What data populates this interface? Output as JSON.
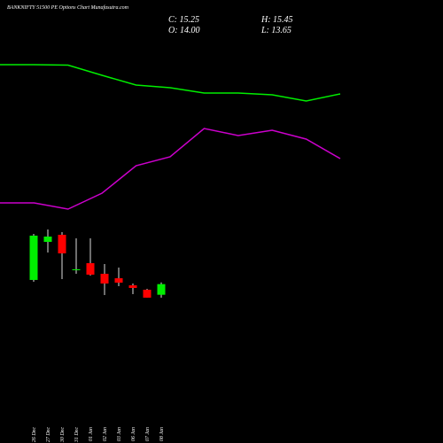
{
  "header": {
    "title": "BANKNIFTY 51500  PE Options  Chart Munafasutra.com",
    "close": "C: 15.25",
    "open": "O: 14.00",
    "high": "H: 15.45",
    "low": "L: 13.65"
  },
  "chart_data": [
    {
      "type": "line",
      "ylim": [
        0,
        100
      ],
      "series": [
        {
          "color": "#00ee00",
          "values": [
            70.8,
            70.8,
            70.6,
            66,
            61.6,
            60.4,
            58,
            58,
            57.2,
            54.4,
            57.6
          ]
        },
        {
          "color": "#cc00cc",
          "values": [
            8.4,
            8.4,
            5.6,
            12.8,
            25.2,
            29.2,
            42,
            38.8,
            41.2,
            37.2,
            28.4
          ]
        }
      ]
    },
    {
      "type": "candlestick",
      "ylim": [
        12.2,
        22.6
      ],
      "up_color": "#00ee00",
      "down_color": "#ff0000",
      "categories": [
        "26 Dec",
        "27 Dec",
        "30 Dec",
        "31 Dec",
        "01 Jan",
        "02 Jan",
        "03 Jan",
        "06 Jan",
        "07 Jan",
        "08 Jan"
      ],
      "open": [
        15.74,
        20.21,
        21.04,
        16.88,
        17.71,
        16.46,
        15.94,
        15.11,
        14.59,
        14.0
      ],
      "high": [
        21.14,
        21.66,
        21.35,
        20.62,
        20.62,
        17.61,
        17.19,
        15.32,
        14.7,
        15.45
      ],
      "low": [
        15.53,
        18.96,
        15.84,
        16.46,
        16.26,
        13.97,
        15.01,
        14.07,
        13.66,
        13.65
      ],
      "close": [
        20.94,
        20.83,
        18.86,
        16.99,
        16.36,
        15.32,
        15.42,
        14.8,
        13.66,
        15.25
      ]
    }
  ]
}
